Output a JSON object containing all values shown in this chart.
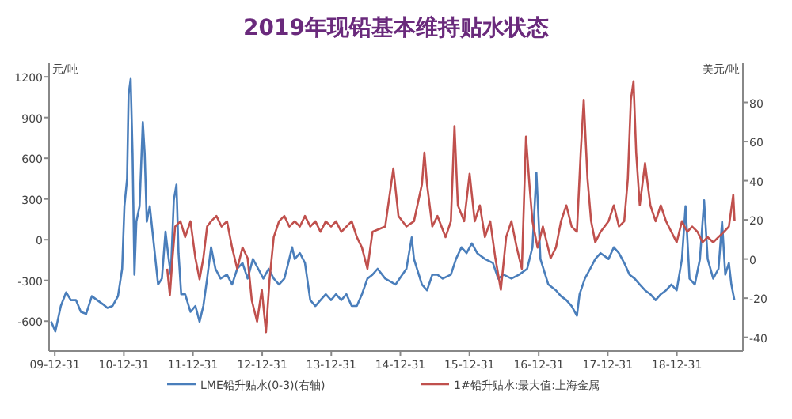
{
  "chart_data": {
    "type": "line",
    "title": "2019年现铅基本维持贴水状态",
    "ylabel": "元/吨",
    "y2label": "美元/吨",
    "legend": "bottom",
    "ylim": [
      -820,
      1300
    ],
    "yticks": [
      -600,
      -300,
      0,
      300,
      600,
      900,
      1200
    ],
    "y2lim": [
      -47,
      100
    ],
    "y2ticks": [
      -40,
      -20,
      0,
      20,
      40,
      60,
      80
    ],
    "xlim": [
      "2009-12-01",
      "2019-12-15"
    ],
    "xticks": [
      {
        "value": "2009-12-31",
        "label": "09-12-31"
      },
      {
        "value": "2010-12-31",
        "label": "10-12-31"
      },
      {
        "value": "2011-12-31",
        "label": "11-12-31"
      },
      {
        "value": "2012-12-31",
        "label": "12-12-31"
      },
      {
        "value": "2013-12-31",
        "label": "13-12-31"
      },
      {
        "value": "2014-12-31",
        "label": "14-12-31"
      },
      {
        "value": "2015-12-31",
        "label": "15-12-31"
      },
      {
        "value": "2016-12-31",
        "label": "16-12-31"
      },
      {
        "value": "2017-12-31",
        "label": "17-12-31"
      },
      {
        "value": "2018-12-31",
        "label": "18-12-31"
      }
    ],
    "series": [
      {
        "name": "LME铅升贴水(0-3)(右轴)",
        "color": "#4a7ebb",
        "axis": "y2",
        "x": [
          "2009-12-12",
          "2010-01-03",
          "2010-02-01",
          "2010-03-01",
          "2010-03-26",
          "2010-04-22",
          "2010-05-18",
          "2010-06-15",
          "2010-07-15",
          "2010-08-12",
          "2010-09-10",
          "2010-10-05",
          "2010-11-01",
          "2010-11-30",
          "2010-12-22",
          "2011-01-03",
          "2011-01-17",
          "2011-01-25",
          "2011-02-05",
          "2011-02-15",
          "2011-02-25",
          "2011-03-07",
          "2011-03-24",
          "2011-04-10",
          "2011-04-20",
          "2011-05-01",
          "2011-05-17",
          "2011-06-09",
          "2011-06-30",
          "2011-07-20",
          "2011-08-08",
          "2011-08-25",
          "2011-09-05",
          "2011-09-21",
          "2011-10-05",
          "2011-10-16",
          "2011-10-30",
          "2011-11-20",
          "2011-12-18",
          "2012-01-13",
          "2012-02-04",
          "2012-02-24",
          "2012-03-15",
          "2012-04-05",
          "2012-04-28",
          "2012-05-25",
          "2012-06-28",
          "2012-07-25",
          "2012-08-21",
          "2012-09-18",
          "2012-10-15",
          "2012-11-12",
          "2012-12-10",
          "2013-01-06",
          "2013-02-03",
          "2013-03-02",
          "2013-03-30",
          "2013-04-27",
          "2013-05-18",
          "2013-06-07",
          "2013-06-21",
          "2013-07-18",
          "2013-08-14",
          "2013-09-11",
          "2013-10-08",
          "2013-11-04",
          "2013-12-02",
          "2013-12-30",
          "2014-01-25",
          "2014-02-22",
          "2014-03-21",
          "2014-04-18",
          "2014-05-15",
          "2014-06-11",
          "2014-07-10",
          "2014-08-06",
          "2014-09-02",
          "2014-10-12",
          "2014-12-06",
          "2015-02-01",
          "2015-03-01",
          "2015-03-13",
          "2015-04-24",
          "2015-05-21",
          "2015-06-18",
          "2015-07-15",
          "2015-08-12",
          "2015-09-24",
          "2015-10-21",
          "2015-11-19",
          "2015-12-16",
          "2016-01-13",
          "2016-02-10",
          "2016-03-22",
          "2016-05-03",
          "2016-05-31",
          "2016-06-28",
          "2016-08-09",
          "2016-09-19",
          "2016-10-31",
          "2016-11-28",
          "2016-12-19",
          "2017-01-09",
          "2017-02-20",
          "2017-04-01",
          "2017-04-28",
          "2017-05-26",
          "2017-06-23",
          "2017-07-21",
          "2017-08-04",
          "2017-09-01",
          "2017-09-29",
          "2017-10-26",
          "2017-11-23",
          "2018-01-04",
          "2018-02-01",
          "2018-02-28",
          "2018-03-28",
          "2018-04-25",
          "2018-05-22",
          "2018-06-18",
          "2018-07-16",
          "2018-08-13",
          "2018-09-10",
          "2018-10-07",
          "2018-11-04",
          "2018-12-02",
          "2018-12-30",
          "2019-01-27",
          "2019-02-15",
          "2019-03-08",
          "2019-04-05",
          "2019-05-02",
          "2019-05-24",
          "2019-06-12",
          "2019-07-11",
          "2019-08-08",
          "2019-08-27",
          "2019-09-13",
          "2019-10-02",
          "2019-10-15",
          "2019-10-31"
        ],
        "values": [
          -32,
          -37,
          -24,
          -17,
          -21,
          -21,
          -27,
          -28,
          -19,
          -21,
          -23,
          -25,
          -24,
          -19,
          -5,
          27,
          41,
          84,
          92,
          54,
          -8,
          19,
          27,
          70,
          54,
          19,
          27,
          6,
          -13,
          -10,
          14,
          0,
          -8,
          30,
          38,
          3,
          -18,
          -18,
          -27,
          -24,
          -32,
          -24,
          -10,
          6,
          -5,
          -10,
          -8,
          -13,
          -5,
          -2,
          -10,
          0,
          -5,
          -10,
          -5,
          -10,
          -13,
          -10,
          -2,
          6,
          0,
          3,
          -2,
          -21,
          -24,
          -21,
          -18,
          -21,
          -18,
          -21,
          -18,
          -24,
          -24,
          -18,
          -10,
          -8,
          -5,
          -10,
          -13,
          -5,
          11,
          0,
          -13,
          -16,
          -8,
          -8,
          -10,
          -8,
          0,
          6,
          3,
          8,
          3,
          0,
          -2,
          -10,
          -8,
          -10,
          -8,
          -5,
          6,
          44,
          0,
          -13,
          -16,
          -19,
          -21,
          -24,
          -29,
          -18,
          -10,
          -5,
          0,
          3,
          0,
          6,
          3,
          -2,
          -8,
          -10,
          -13,
          -16,
          -18,
          -21,
          -18,
          -16,
          -13,
          -16,
          0,
          27,
          -10,
          -13,
          0,
          30,
          0,
          -10,
          -5,
          19,
          -8,
          -2,
          -13,
          -21
        ]
      },
      {
        "name": "1#铅升贴水:最大值:上海金属",
        "color": "#c0504d",
        "x": [
          "2011-08-17",
          "2011-08-31",
          "2011-09-14",
          "2011-09-28",
          "2011-10-26",
          "2011-11-20",
          "2011-12-18",
          "2012-01-13",
          "2012-02-04",
          "2012-02-24",
          "2012-03-15",
          "2012-04-05",
          "2012-05-03",
          "2012-05-30",
          "2012-06-28",
          "2012-07-25",
          "2012-08-21",
          "2012-09-18",
          "2012-10-15",
          "2012-11-06",
          "2012-12-04",
          "2012-12-29",
          "2013-01-20",
          "2013-02-08",
          "2013-03-02",
          "2013-03-30",
          "2013-04-27",
          "2013-05-23",
          "2013-06-21",
          "2013-07-18",
          "2013-08-14",
          "2013-09-11",
          "2013-10-08",
          "2013-11-04",
          "2013-12-02",
          "2013-12-30",
          "2014-01-25",
          "2014-02-22",
          "2014-03-21",
          "2014-04-18",
          "2014-05-15",
          "2014-06-11",
          "2014-07-10",
          "2014-08-06",
          "2014-10-12",
          "2014-11-24",
          "2014-12-21",
          "2015-02-01",
          "2015-03-13",
          "2015-04-24",
          "2015-05-07",
          "2015-05-21",
          "2015-06-18",
          "2015-07-15",
          "2015-08-27",
          "2015-09-24",
          "2015-10-13",
          "2015-10-31",
          "2015-12-03",
          "2016-01-01",
          "2016-01-28",
          "2016-02-24",
          "2016-03-22",
          "2016-04-19",
          "2016-05-16",
          "2016-06-14",
          "2016-07-12",
          "2016-08-09",
          "2016-09-06",
          "2016-10-03",
          "2016-10-25",
          "2016-11-12",
          "2016-11-28",
          "2016-12-25",
          "2017-01-22",
          "2017-03-04",
          "2017-04-01",
          "2017-04-28",
          "2017-05-26",
          "2017-06-23",
          "2017-07-21",
          "2017-08-10",
          "2017-08-26",
          "2017-09-15",
          "2017-10-04",
          "2017-10-26",
          "2017-11-23",
          "2018-01-04",
          "2018-02-01",
          "2018-02-28",
          "2018-03-28",
          "2018-04-16",
          "2018-05-02",
          "2018-05-16",
          "2018-05-30",
          "2018-06-18",
          "2018-07-16",
          "2018-08-13",
          "2018-09-10",
          "2018-10-07",
          "2018-11-04",
          "2018-12-02",
          "2018-12-30",
          "2019-01-27",
          "2019-02-24",
          "2019-03-22",
          "2019-04-19",
          "2019-05-16",
          "2019-06-12",
          "2019-07-11",
          "2019-08-08",
          "2019-09-06",
          "2019-10-02",
          "2019-10-25",
          "2019-11-01"
        ],
        "values": [
          -214,
          -408,
          -136,
          97,
          136,
          19,
          136,
          -136,
          -292,
          -136,
          97,
          136,
          175,
          97,
          136,
          -58,
          -214,
          -58,
          -136,
          -447,
          -603,
          -369,
          -681,
          -292,
          19,
          136,
          175,
          97,
          136,
          97,
          175,
          97,
          136,
          58,
          136,
          97,
          136,
          58,
          97,
          136,
          19,
          -58,
          -214,
          58,
          97,
          525,
          175,
          97,
          136,
          408,
          642,
          408,
          97,
          175,
          19,
          136,
          836,
          253,
          136,
          486,
          136,
          253,
          19,
          136,
          -136,
          -369,
          19,
          136,
          -58,
          -214,
          759,
          408,
          136,
          -58,
          97,
          -136,
          -58,
          136,
          253,
          97,
          58,
          642,
          1031,
          447,
          136,
          -19,
          58,
          136,
          253,
          97,
          136,
          447,
          1031,
          1167,
          642,
          253,
          564,
          253,
          136,
          253,
          136,
          58,
          -19,
          136,
          58,
          97,
          58,
          -19,
          19,
          -19,
          19,
          58,
          97,
          331,
          136
        ]
      }
    ]
  }
}
